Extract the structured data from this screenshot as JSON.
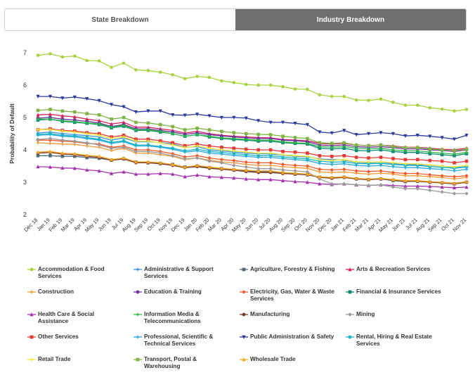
{
  "tabs": [
    {
      "label": "State Breakdown",
      "active": false
    },
    {
      "label": "Industry Breakdown",
      "active": true
    }
  ],
  "chart_data": {
    "type": "line",
    "ylabel": "Probability of Default",
    "xlabel": "",
    "ylim": [
      2,
      7
    ],
    "yticks": [
      2,
      3,
      4,
      5,
      6,
      7
    ],
    "grid": false,
    "legend_position": "bottom",
    "x": [
      "Dec 18",
      "Jan 19",
      "Feb 19",
      "Mar 19",
      "Apr 19",
      "May 19",
      "Jun 19",
      "Jul 19",
      "Aug 19",
      "Sep 19",
      "Oct 19",
      "Nov 19",
      "Dec 19",
      "Jan 20",
      "Feb 20",
      "Mar 20",
      "Apr 20",
      "May 20",
      "Jun 20",
      "Jul 20",
      "Aug 20",
      "Sep 20",
      "Oct 20",
      "Nov 20",
      "Dec 20",
      "Jan 21",
      "Feb 21",
      "Mar 21",
      "Apr 21",
      "May 21",
      "Jun 21",
      "Jul 21",
      "Aug 21",
      "Sep 21",
      "Oct 21",
      "Nov 21"
    ],
    "series": [
      {
        "name": "Accommodation & Food Services",
        "color": "#a6d33d",
        "marker": "circle",
        "values": [
          6.92,
          6.97,
          6.87,
          6.9,
          6.76,
          6.75,
          6.55,
          6.68,
          6.47,
          6.45,
          6.4,
          6.32,
          6.2,
          6.27,
          6.24,
          6.13,
          6.08,
          6.02,
          6.0,
          6.0,
          5.95,
          5.88,
          5.87,
          5.7,
          5.65,
          5.65,
          5.54,
          5.53,
          5.57,
          5.47,
          5.38,
          5.38,
          5.3,
          5.26,
          5.2,
          5.25
        ]
      },
      {
        "name": "Administrative & Support Services",
        "color": "#3c8fd6",
        "marker": "plus",
        "values": [
          4.52,
          4.55,
          4.5,
          4.47,
          4.44,
          4.4,
          4.3,
          4.37,
          4.25,
          4.25,
          4.23,
          4.18,
          4.08,
          4.1,
          4.0,
          3.97,
          3.93,
          3.9,
          3.88,
          3.87,
          3.84,
          3.8,
          3.78,
          3.72,
          3.7,
          3.68,
          3.62,
          3.6,
          3.62,
          3.58,
          3.55,
          3.54,
          3.52,
          3.5,
          3.45,
          3.48
        ]
      },
      {
        "name": "Agriculture, Forestry & Fishing",
        "color": "#4f6b7d",
        "marker": "square",
        "values": [
          3.82,
          3.82,
          3.8,
          3.8,
          3.76,
          3.74,
          3.68,
          3.72,
          3.62,
          3.6,
          3.58,
          3.55,
          3.47,
          3.5,
          3.45,
          3.42,
          3.38,
          3.35,
          3.33,
          3.32,
          3.28,
          3.25,
          3.23,
          3.15,
          3.13,
          3.15,
          3.1,
          3.08,
          3.1,
          3.05,
          3.02,
          3.03,
          3.0,
          2.98,
          2.95,
          3.0
        ]
      },
      {
        "name": "Arts & Recreation Services",
        "color": "#d6245a",
        "marker": "triangle",
        "values": [
          5.08,
          5.1,
          5.05,
          5.02,
          4.95,
          4.9,
          4.8,
          4.85,
          4.7,
          4.7,
          4.65,
          4.6,
          4.52,
          4.57,
          4.5,
          4.45,
          4.42,
          4.4,
          4.38,
          4.37,
          4.32,
          4.3,
          4.28,
          4.2,
          4.18,
          4.2,
          4.15,
          4.13,
          4.15,
          4.12,
          4.08,
          4.08,
          4.05,
          4.02,
          4.0,
          4.05
        ]
      },
      {
        "name": "Construction",
        "color": "#f39a3c",
        "marker": "plus",
        "values": [
          4.22,
          4.2,
          4.18,
          4.17,
          4.12,
          4.08,
          3.98,
          4.05,
          3.9,
          3.9,
          3.85,
          3.8,
          3.7,
          3.75,
          3.68,
          3.63,
          3.6,
          3.55,
          3.52,
          3.52,
          3.48,
          3.45,
          3.43,
          3.32,
          3.3,
          3.32,
          3.28,
          3.25,
          3.28,
          3.25,
          3.2,
          3.2,
          3.17,
          3.15,
          3.1,
          3.15
        ]
      },
      {
        "name": "Education & Training",
        "color": "#6e2ea0",
        "marker": "circle",
        "values": [
          4.98,
          5.0,
          4.95,
          4.92,
          4.88,
          4.83,
          4.72,
          4.78,
          4.65,
          4.65,
          4.6,
          4.55,
          4.48,
          4.52,
          4.47,
          4.43,
          4.4,
          4.37,
          4.35,
          4.35,
          4.3,
          4.28,
          4.25,
          4.15,
          4.13,
          4.15,
          4.1,
          4.08,
          4.1,
          4.07,
          4.03,
          4.03,
          4.0,
          3.98,
          3.95,
          4.0
        ]
      },
      {
        "name": "Electricity, Gas, Water & Waste Services",
        "color": "#f05a28",
        "marker": "diamond",
        "values": [
          4.3,
          4.3,
          4.27,
          4.25,
          4.2,
          4.18,
          4.08,
          4.12,
          4.0,
          4.0,
          3.95,
          3.88,
          3.78,
          3.82,
          3.75,
          3.7,
          3.67,
          3.62,
          3.6,
          3.6,
          3.55,
          3.52,
          3.5,
          3.4,
          3.38,
          3.4,
          3.35,
          3.33,
          3.35,
          3.3,
          3.27,
          3.27,
          3.23,
          3.2,
          3.17,
          3.2
        ]
      },
      {
        "name": "Financial & Insurance Services",
        "color": "#0d8a72",
        "marker": "square",
        "values": [
          4.92,
          4.95,
          4.88,
          4.85,
          4.82,
          4.78,
          4.68,
          4.73,
          4.6,
          4.6,
          4.55,
          4.5,
          4.42,
          4.47,
          4.4,
          4.35,
          4.32,
          4.3,
          4.27,
          4.27,
          4.22,
          4.2,
          4.18,
          4.05,
          4.03,
          4.05,
          3.98,
          3.97,
          4.0,
          3.95,
          3.92,
          3.92,
          3.88,
          3.85,
          3.82,
          3.88
        ]
      },
      {
        "name": "Health Care & Social Assistance",
        "color": "#a52fb0",
        "marker": "triangle",
        "values": [
          3.48,
          3.47,
          3.44,
          3.43,
          3.38,
          3.35,
          3.27,
          3.32,
          3.25,
          3.25,
          3.27,
          3.25,
          3.17,
          3.22,
          3.17,
          3.15,
          3.13,
          3.1,
          3.08,
          3.08,
          3.05,
          3.02,
          3.0,
          2.95,
          2.93,
          2.95,
          2.92,
          2.9,
          2.92,
          2.9,
          2.88,
          2.88,
          2.87,
          2.85,
          2.83,
          2.85
        ]
      },
      {
        "name": "Information Media & Telecommunications",
        "color": "#2fb84a",
        "marker": "plus",
        "values": [
          4.95,
          4.95,
          4.9,
          4.87,
          4.83,
          4.8,
          4.7,
          4.75,
          4.62,
          4.62,
          4.57,
          4.5,
          4.42,
          4.47,
          4.42,
          4.37,
          4.35,
          4.32,
          4.3,
          4.3,
          4.25,
          4.22,
          4.2,
          4.1,
          4.08,
          4.1,
          4.05,
          4.03,
          4.05,
          4.0,
          3.97,
          3.97,
          3.93,
          3.9,
          3.87,
          3.92
        ]
      },
      {
        "name": "Manufacturing",
        "color": "#7a3a2a",
        "marker": "circle",
        "values": [
          3.9,
          3.92,
          3.87,
          3.85,
          3.8,
          3.77,
          3.68,
          3.72,
          3.6,
          3.6,
          3.57,
          3.52,
          3.45,
          3.48,
          3.43,
          3.4,
          3.37,
          3.33,
          3.3,
          3.3,
          3.27,
          3.25,
          3.23,
          3.15,
          3.12,
          3.15,
          3.1,
          3.08,
          3.1,
          3.07,
          3.03,
          3.03,
          3.0,
          2.98,
          2.95,
          3.0
        ]
      },
      {
        "name": "Mining",
        "color": "#9a9a9a",
        "marker": "diamond",
        "values": [
          4.32,
          4.35,
          4.3,
          4.27,
          4.22,
          4.15,
          4.05,
          4.08,
          3.95,
          3.95,
          3.9,
          3.82,
          3.72,
          3.75,
          3.65,
          3.6,
          3.52,
          3.47,
          3.42,
          3.42,
          3.38,
          3.35,
          3.32,
          3.1,
          2.95,
          2.95,
          2.92,
          2.9,
          2.92,
          2.85,
          2.8,
          2.8,
          2.75,
          2.7,
          2.65,
          2.65
        ]
      },
      {
        "name": "Other Services",
        "color": "#e53935",
        "marker": "square",
        "values": [
          4.62,
          4.65,
          4.6,
          4.58,
          4.53,
          4.5,
          4.4,
          4.45,
          4.33,
          4.33,
          4.28,
          4.22,
          4.13,
          4.18,
          4.12,
          4.08,
          4.05,
          4.02,
          4.0,
          4.0,
          3.95,
          3.93,
          3.9,
          3.82,
          3.8,
          3.82,
          3.77,
          3.75,
          3.77,
          3.73,
          3.7,
          3.7,
          3.67,
          3.65,
          3.6,
          3.65
        ]
      },
      {
        "name": "Professional, Scientific & Technical Services",
        "color": "#2aa7e0",
        "marker": "plus",
        "values": [
          4.45,
          4.47,
          4.42,
          4.4,
          4.35,
          4.3,
          4.2,
          4.25,
          4.12,
          4.12,
          4.08,
          4.02,
          3.93,
          3.97,
          3.9,
          3.87,
          3.83,
          3.8,
          3.77,
          3.77,
          3.73,
          3.7,
          3.67,
          3.58,
          3.55,
          3.57,
          3.52,
          3.5,
          3.52,
          3.48,
          3.45,
          3.45,
          3.42,
          3.4,
          3.35,
          3.4
        ]
      },
      {
        "name": "Public Administration & Safety",
        "color": "#2b3a9e",
        "marker": "triangle-down",
        "values": [
          5.65,
          5.65,
          5.6,
          5.63,
          5.58,
          5.52,
          5.4,
          5.33,
          5.17,
          5.2,
          5.2,
          5.08,
          5.07,
          5.1,
          5.05,
          5.0,
          5.0,
          4.98,
          4.9,
          4.85,
          4.85,
          4.82,
          4.78,
          4.55,
          4.52,
          4.6,
          4.47,
          4.5,
          4.53,
          4.5,
          4.43,
          4.45,
          4.42,
          4.38,
          4.33,
          4.45
        ]
      },
      {
        "name": "Rental, Hiring & Real Estate Services",
        "color": "#1ab4c8",
        "marker": "circle",
        "values": [
          4.48,
          4.5,
          4.45,
          4.43,
          4.38,
          4.33,
          4.23,
          4.28,
          4.15,
          4.15,
          4.1,
          4.05,
          3.97,
          4.02,
          3.95,
          3.92,
          3.88,
          3.85,
          3.82,
          3.82,
          3.78,
          3.75,
          3.72,
          3.65,
          3.62,
          3.63,
          3.58,
          3.57,
          3.58,
          3.55,
          3.52,
          3.52,
          3.48,
          3.46,
          3.43,
          3.47
        ]
      },
      {
        "name": "Retail Trade",
        "color": "#f3e83c",
        "marker": "plus",
        "values": [
          4.62,
          4.63,
          4.58,
          4.55,
          4.5,
          4.45,
          4.35,
          4.4,
          4.27,
          4.27,
          4.22,
          4.15,
          4.07,
          4.12,
          4.05,
          4.0,
          3.97,
          3.93,
          3.9,
          3.9,
          3.85,
          3.82,
          3.8,
          3.7,
          3.67,
          3.7,
          3.63,
          3.62,
          3.63,
          3.6,
          3.57,
          3.57,
          3.53,
          3.5,
          3.47,
          3.52
        ]
      },
      {
        "name": "Transport, Postal & Warehousing",
        "color": "#7fb342",
        "marker": "square",
        "values": [
          5.22,
          5.25,
          5.2,
          5.17,
          5.12,
          5.08,
          4.95,
          5.0,
          4.85,
          4.83,
          4.78,
          4.72,
          4.62,
          4.67,
          4.62,
          4.57,
          4.53,
          4.5,
          4.48,
          4.47,
          4.42,
          4.38,
          4.35,
          4.22,
          4.2,
          4.22,
          4.15,
          4.13,
          4.15,
          4.1,
          4.07,
          4.07,
          4.03,
          4.0,
          3.97,
          4.02
        ]
      },
      {
        "name": "Wholesale Trade",
        "color": "#f5a623",
        "marker": "triangle",
        "values": [
          3.93,
          3.95,
          3.9,
          3.88,
          3.83,
          3.8,
          3.7,
          3.75,
          3.63,
          3.63,
          3.6,
          3.55,
          3.47,
          3.52,
          3.47,
          3.43,
          3.4,
          3.37,
          3.35,
          3.35,
          3.3,
          3.28,
          3.25,
          3.17,
          3.15,
          3.17,
          3.12,
          3.1,
          3.12,
          3.08,
          3.05,
          3.05,
          3.02,
          3.0,
          2.97,
          3.02
        ]
      }
    ]
  }
}
